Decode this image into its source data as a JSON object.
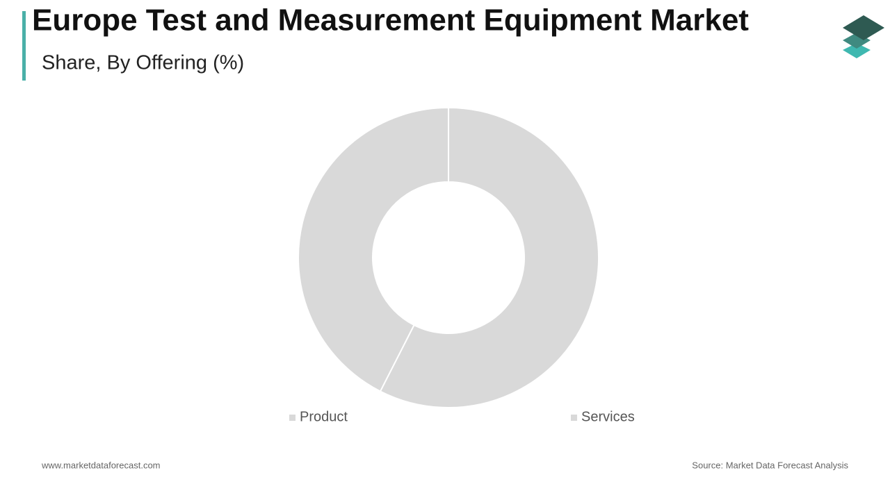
{
  "chart_data": {
    "type": "donut",
    "title": "Europe Test and Measurement Equipment Market",
    "subtitle": "Share, By Offering (%)",
    "categories": [
      "Product",
      "Services"
    ],
    "values": [
      57.5,
      42.5
    ],
    "colors": [
      "#d9d9d9",
      "#d9d9d9"
    ],
    "legend": "bottom",
    "website": "www.marketdataforecast.com",
    "source": "Source: Market Data Forecast Analysis"
  }
}
